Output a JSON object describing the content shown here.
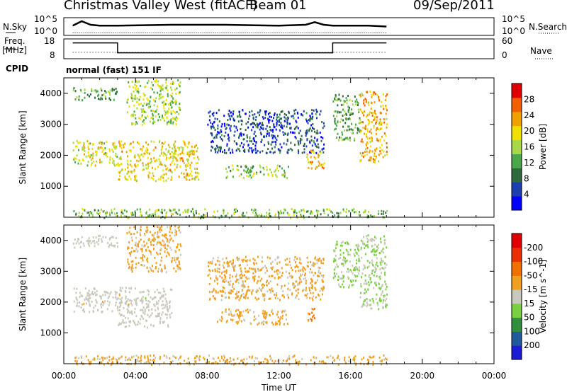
{
  "header": {
    "title": "Christmas Valley West (fitACF)",
    "beam": "Beam 01",
    "date": "09/Sep/2011"
  },
  "panels": {
    "nsky_label": "N.Sky",
    "nsearch_label": "N.Search",
    "nsky_ticks": [
      "10^5",
      "10^0"
    ],
    "freq_label_1": "Freq.",
    "freq_label_2": "[MHz]",
    "freq_ticks": [
      "18",
      "8"
    ],
    "nave_label": "Nave",
    "nave_ticks": [
      "60",
      "0"
    ],
    "cpid_label": "CPID",
    "cpid_value": "normal (fast) 151 IF"
  },
  "colors": {
    "power_scale": [
      "#0000ff",
      "#1c3fb0",
      "#2e6a3c",
      "#4aa84a",
      "#a8d848",
      "#f0e000",
      "#f0a000",
      "#f06000",
      "#e00000"
    ],
    "velocity_scale": [
      "#1c1cd0",
      "#1f5a9c",
      "#2f8f3f",
      "#7ad040",
      "#c8c8bc",
      "#f0a020",
      "#f07000",
      "#e83000",
      "#e00000"
    ],
    "ground_scatter": "#c8c8bc"
  },
  "chart_data": [
    {
      "type": "line",
      "title": "",
      "xlabel": "",
      "ylabel": "N.Sky",
      "ylim_label": [
        "10^0",
        "10^5"
      ],
      "x": [
        "00:30",
        "01:00",
        "01:30",
        "02:00",
        "03:00",
        "06:00",
        "09:00",
        "12:00",
        "13:30",
        "14:00",
        "14:30",
        "15:00",
        "16:00",
        "17:00",
        "18:00"
      ],
      "series": [
        {
          "name": "N.Sky",
          "values": [
            0.55,
            0.8,
            0.6,
            0.55,
            0.55,
            0.6,
            0.6,
            0.55,
            0.6,
            0.75,
            0.6,
            0.55,
            0.55,
            0.55,
            0.5
          ]
        },
        {
          "name": "N.Search",
          "values": [
            0.15,
            0.15,
            0.15,
            0.15,
            0.15,
            0.15,
            0.15,
            0.15,
            0.15,
            0.15,
            0.15,
            0.15,
            0.15,
            0.15,
            0.15
          ]
        }
      ]
    },
    {
      "type": "line",
      "title": "",
      "xlabel": "",
      "ylabel": "Freq. [MHz]",
      "ylim": [
        8,
        18
      ],
      "x": [
        "00:30",
        "03:00",
        "03:00",
        "15:00",
        "15:00",
        "18:00"
      ],
      "series": [
        {
          "name": "Freq.",
          "values": [
            16,
            16,
            11,
            11,
            16,
            16
          ]
        },
        {
          "name": "Nave",
          "values": [
            10,
            10,
            10,
            10,
            10,
            10
          ]
        }
      ]
    },
    {
      "type": "heatmap",
      "title": "normal (fast) 151 IF",
      "xlabel": "",
      "ylabel": "Slant Range [km]",
      "ylim": [
        0,
        4500
      ],
      "xlim": [
        "00:00",
        "24:00"
      ],
      "yticks": [
        1000,
        2000,
        3000,
        4000
      ],
      "colorbar_label": "Power [dB]",
      "colorbar_ticks": [
        4,
        8,
        12,
        16,
        20,
        24,
        28
      ],
      "regions": [
        {
          "t0": 0.5,
          "t1": 3.0,
          "r0": 1700,
          "r1": 2500,
          "level": 18
        },
        {
          "t0": 0.5,
          "t1": 3.0,
          "r0": 3800,
          "r1": 4200,
          "level": 12
        },
        {
          "t0": 3.0,
          "t1": 7.5,
          "r0": 1200,
          "r1": 2500,
          "level": 20
        },
        {
          "t0": 3.5,
          "t1": 6.5,
          "r0": 3000,
          "r1": 4500,
          "level": 16
        },
        {
          "t0": 8.0,
          "t1": 14.5,
          "r0": 2100,
          "r1": 3500,
          "level": 6
        },
        {
          "t0": 9.0,
          "t1": 12.5,
          "r0": 1300,
          "r1": 1700,
          "level": 14
        },
        {
          "t0": 13.5,
          "t1": 14.5,
          "r0": 1600,
          "r1": 2200,
          "level": 22
        },
        {
          "t0": 15.0,
          "t1": 16.5,
          "r0": 2500,
          "r1": 4000,
          "level": 12
        },
        {
          "t0": 16.5,
          "t1": 18.0,
          "r0": 1800,
          "r1": 4100,
          "level": 22
        },
        {
          "t0": 0.5,
          "t1": 18.0,
          "r0": 0,
          "r1": 300,
          "level": 14
        }
      ]
    },
    {
      "type": "heatmap",
      "title": "",
      "xlabel": "Time UT",
      "ylabel": "Slant Range [km]",
      "ylim": [
        0,
        4500
      ],
      "xlim": [
        "00:00",
        "24:00"
      ],
      "xticks": [
        "00:00",
        "04:00",
        "08:00",
        "12:00",
        "16:00",
        "20:00",
        "00:00"
      ],
      "yticks": [
        1000,
        2000,
        3000,
        4000
      ],
      "colorbar_label": "Velocity [m s^-1]",
      "colorbar_ticks": [
        200,
        100,
        50,
        15,
        -15,
        -50,
        -100,
        -200
      ],
      "regions": [
        {
          "t0": 0.5,
          "t1": 3.0,
          "r0": 1700,
          "r1": 2500,
          "value": 0,
          "ground": true
        },
        {
          "t0": 0.5,
          "t1": 3.0,
          "r0": 3800,
          "r1": 4200,
          "value": 0,
          "ground": true
        },
        {
          "t0": 3.0,
          "t1": 6.0,
          "r0": 1200,
          "r1": 2500,
          "value": 0,
          "ground": true
        },
        {
          "t0": 3.5,
          "t1": 6.5,
          "r0": 3000,
          "r1": 4500,
          "value": -40
        },
        {
          "t0": 8.0,
          "t1": 14.5,
          "r0": 2100,
          "r1": 3500,
          "value": -40
        },
        {
          "t0": 8.5,
          "t1": 12.5,
          "r0": 1300,
          "r1": 1800,
          "value": -40
        },
        {
          "t0": 13.5,
          "t1": 14.0,
          "r0": 1400,
          "r1": 1900,
          "value": -80
        },
        {
          "t0": 15.0,
          "t1": 16.5,
          "r0": 2500,
          "r1": 4000,
          "value": 30
        },
        {
          "t0": 16.5,
          "t1": 18.0,
          "r0": 1800,
          "r1": 4200,
          "value": 30
        },
        {
          "t0": 0.5,
          "t1": 18.0,
          "r0": 0,
          "r1": 300,
          "value": -40
        }
      ]
    }
  ]
}
